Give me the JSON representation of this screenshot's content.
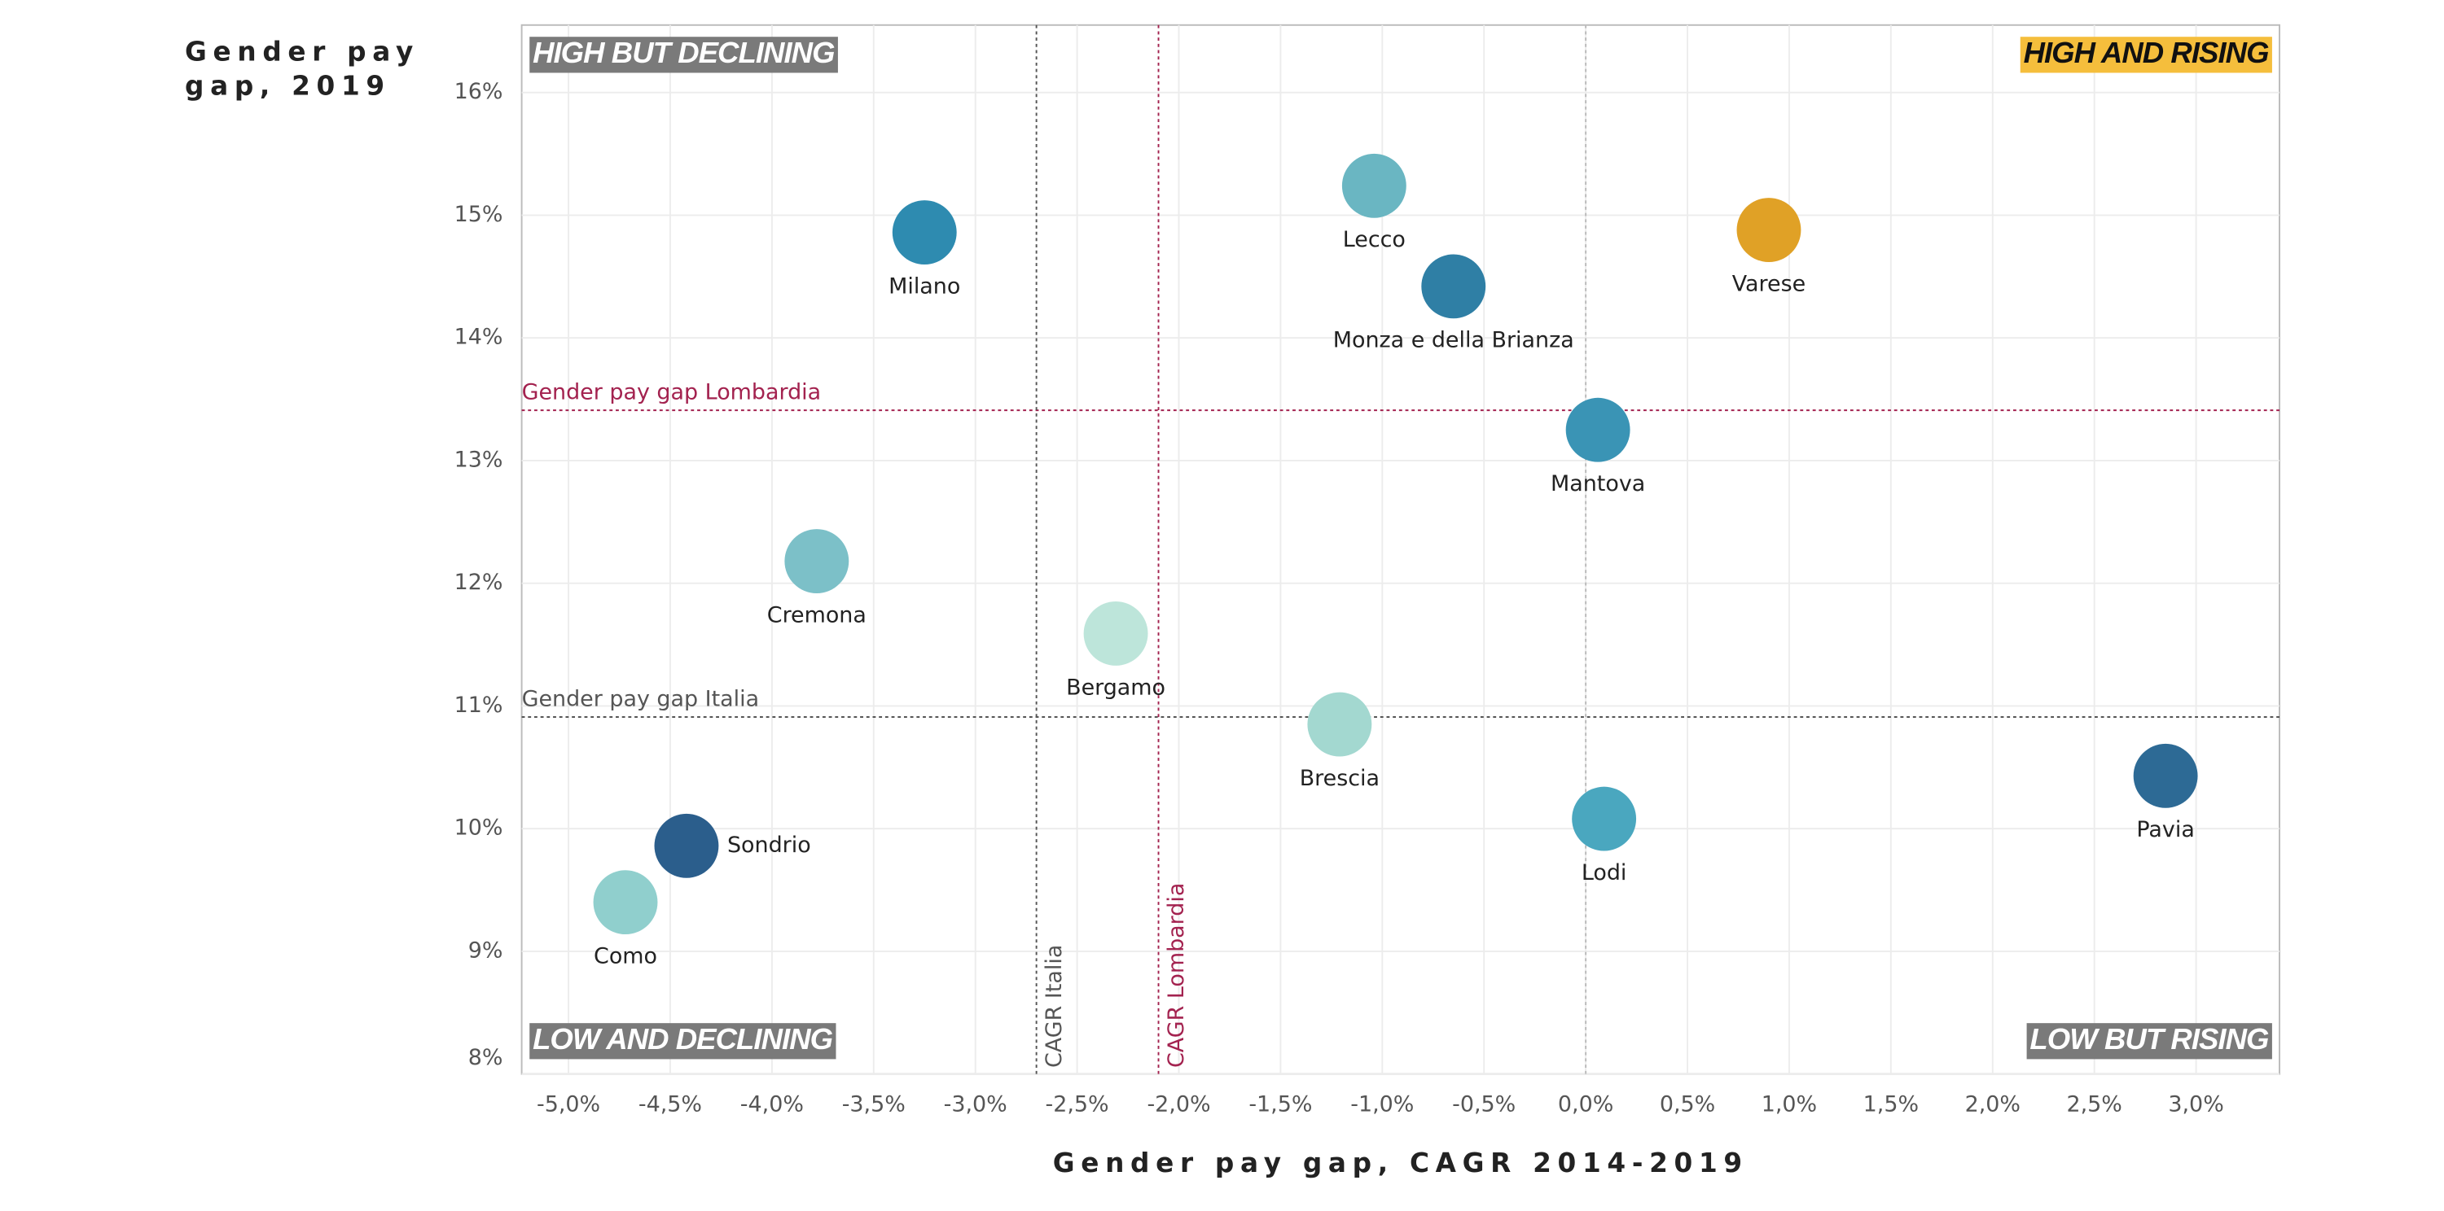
{
  "chart_data": {
    "type": "scatter",
    "y_title_lines": [
      "Gender pay",
      "gap, 2019"
    ],
    "x_title": "Gender pay gap, CAGR 2014-2019",
    "xlim": [
      -5.23,
      3.41
    ],
    "ylim": [
      8.0,
      16.55
    ],
    "xticks": [
      {
        "value": -5.0,
        "label": "-5,0%"
      },
      {
        "value": -4.5,
        "label": "-4,5%"
      },
      {
        "value": -4.0,
        "label": "-4,0%"
      },
      {
        "value": -3.5,
        "label": "-3,5%"
      },
      {
        "value": -3.0,
        "label": "-3,0%"
      },
      {
        "value": -2.5,
        "label": "-2,5%"
      },
      {
        "value": -2.0,
        "label": "-2,0%"
      },
      {
        "value": -1.5,
        "label": "-1,5%"
      },
      {
        "value": -1.0,
        "label": "-1,0%"
      },
      {
        "value": -0.5,
        "label": "-0,5%"
      },
      {
        "value": 0.0,
        "label": "0,0%"
      },
      {
        "value": 0.5,
        "label": "0,5%"
      },
      {
        "value": 1.0,
        "label": "1,0%"
      },
      {
        "value": 1.5,
        "label": "1,5%"
      },
      {
        "value": 2.0,
        "label": "2,0%"
      },
      {
        "value": 2.5,
        "label": "2,5%"
      },
      {
        "value": 3.0,
        "label": "3,0%"
      }
    ],
    "yticks": [
      {
        "value": 8,
        "label": "8%"
      },
      {
        "value": 9,
        "label": "9%"
      },
      {
        "value": 10,
        "label": "10%"
      },
      {
        "value": 11,
        "label": "11%"
      },
      {
        "value": 12,
        "label": "12%"
      },
      {
        "value": 13,
        "label": "13%"
      },
      {
        "value": 14,
        "label": "14%"
      },
      {
        "value": 15,
        "label": "15%"
      },
      {
        "value": 16,
        "label": "16%"
      }
    ],
    "grid": true,
    "zero_line": true,
    "points": [
      {
        "name": "Milano",
        "x": -3.25,
        "y": 14.86,
        "color": "#2e8bb0"
      },
      {
        "name": "Lecco",
        "x": -1.04,
        "y": 15.24,
        "color": "#6ab6c2"
      },
      {
        "name": "Monza e della Brianza",
        "x": -0.65,
        "y": 14.42,
        "color": "#2f7fa5"
      },
      {
        "name": "Varese",
        "x": 0.9,
        "y": 14.88,
        "color": "#e0a126"
      },
      {
        "name": "Mantova",
        "x": 0.06,
        "y": 13.25,
        "color": "#3a94b5"
      },
      {
        "name": "Cremona",
        "x": -3.78,
        "y": 12.18,
        "color": "#7cc0c8"
      },
      {
        "name": "Bergamo",
        "x": -2.31,
        "y": 11.59,
        "color": "#bde5da"
      },
      {
        "name": "Brescia",
        "x": -1.21,
        "y": 10.85,
        "color": "#a3d8d0"
      },
      {
        "name": "Pavia",
        "x": 2.85,
        "y": 10.43,
        "color": "#2d6a95"
      },
      {
        "name": "Lodi",
        "x": 0.09,
        "y": 10.08,
        "color": "#4aa7bf"
      },
      {
        "name": "Sondrio",
        "x": -4.42,
        "y": 9.86,
        "color": "#2b5e8c"
      },
      {
        "name": "Como",
        "x": -4.72,
        "y": 9.4,
        "color": "#90cfcd"
      }
    ],
    "reference_lines": [
      {
        "label": "Gender pay gap Lombardia",
        "axis": "y",
        "value": 13.41,
        "color": "#a3224f"
      },
      {
        "label": "Gender pay gap Italia",
        "axis": "y",
        "value": 10.91,
        "color": "#555555"
      },
      {
        "label": "CAGR Italia",
        "axis": "x",
        "value": -2.7,
        "color": "#555555"
      },
      {
        "label": "CAGR Lombardia",
        "axis": "x",
        "value": -2.1,
        "color": "#a3224f"
      }
    ],
    "quadrants": [
      {
        "label": "HIGH BUT DECLINING",
        "corner": "top-left",
        "color": "#7a7a7a",
        "text_color": "#ffffff"
      },
      {
        "label": "HIGH AND RISING",
        "corner": "top-right",
        "color": "#f5be3c",
        "text_color": "#111111"
      },
      {
        "label": "LOW AND DECLINING",
        "corner": "bottom-left",
        "color": "#7a7a7a",
        "text_color": "#ffffff"
      },
      {
        "label": "LOW BUT RISING",
        "corner": "bottom-right",
        "color": "#7a7a7a",
        "text_color": "#ffffff"
      }
    ]
  }
}
